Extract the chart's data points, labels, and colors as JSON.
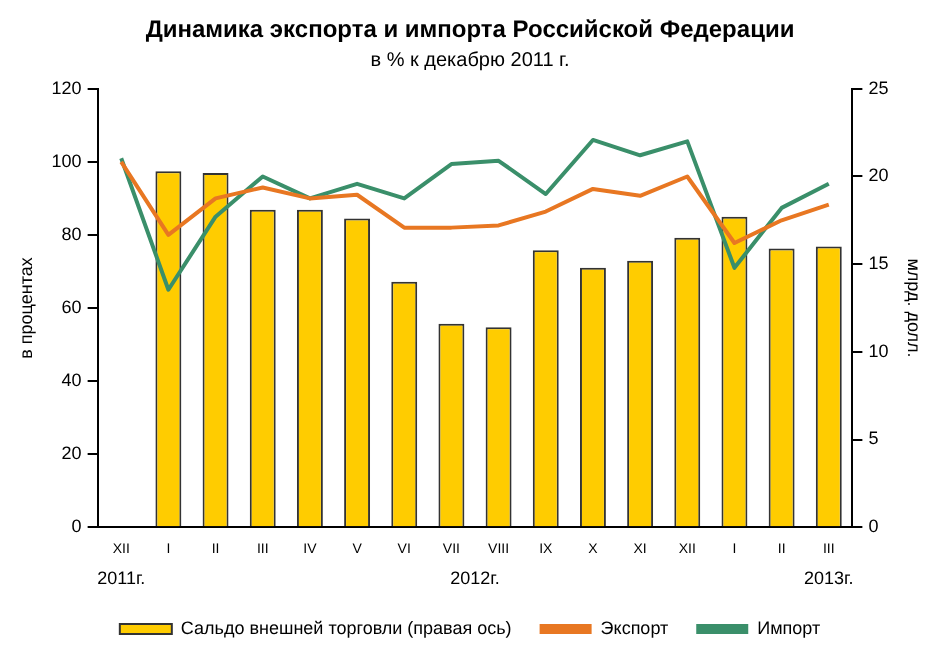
{
  "chart_data": {
    "type": "bar",
    "title": "Динамика экспорта и импорта Российской Федерации",
    "subtitle": "в % к декабрю 2011 г.",
    "ylabel": "в процентах",
    "y2label": "млрд. долл.",
    "categories": [
      "XII",
      "I",
      "II",
      "III",
      "IV",
      "V",
      "VI",
      "VII",
      "VIII",
      "IX",
      "X",
      "XI",
      "XII",
      "I",
      "II",
      "III"
    ],
    "series": [
      {
        "name": "Сальдо внешней торговли (правая ось)",
        "axis": "y2",
        "color": "#ffcc00",
        "values": [
          null,
          20.3,
          20.2,
          18.1,
          18.1,
          17.6,
          14.0,
          11.6,
          11.4,
          15.8,
          14.8,
          15.2,
          16.5,
          17.7,
          15.9,
          16.0
        ]
      },
      {
        "name": "Экспорт",
        "type": "line",
        "color": "#e87722",
        "values": [
          100,
          80,
          90,
          93,
          90,
          91,
          82,
          82,
          82.6,
          86.4,
          92.6,
          90.7,
          96,
          77.8,
          84,
          88.3
        ]
      },
      {
        "name": "Импорт",
        "type": "line",
        "color": "#3a8f6a",
        "values": [
          101,
          65,
          85,
          96,
          90,
          94,
          90,
          99.4,
          100.3,
          91.2,
          106,
          101.8,
          105.6,
          71,
          87.4,
          94
        ]
      }
    ],
    "ylim": [
      0,
      120
    ],
    "yticks": [
      0,
      20,
      40,
      60,
      80,
      100,
      120
    ],
    "y2lim": [
      0,
      25
    ],
    "y2ticks": [
      0,
      5,
      10,
      15,
      20,
      25
    ],
    "annotations": [
      "2011г.",
      "2012г.",
      "2013г."
    ],
    "grid": false,
    "legend": "bottom",
    "marker": "none",
    "line_style": "solid"
  }
}
